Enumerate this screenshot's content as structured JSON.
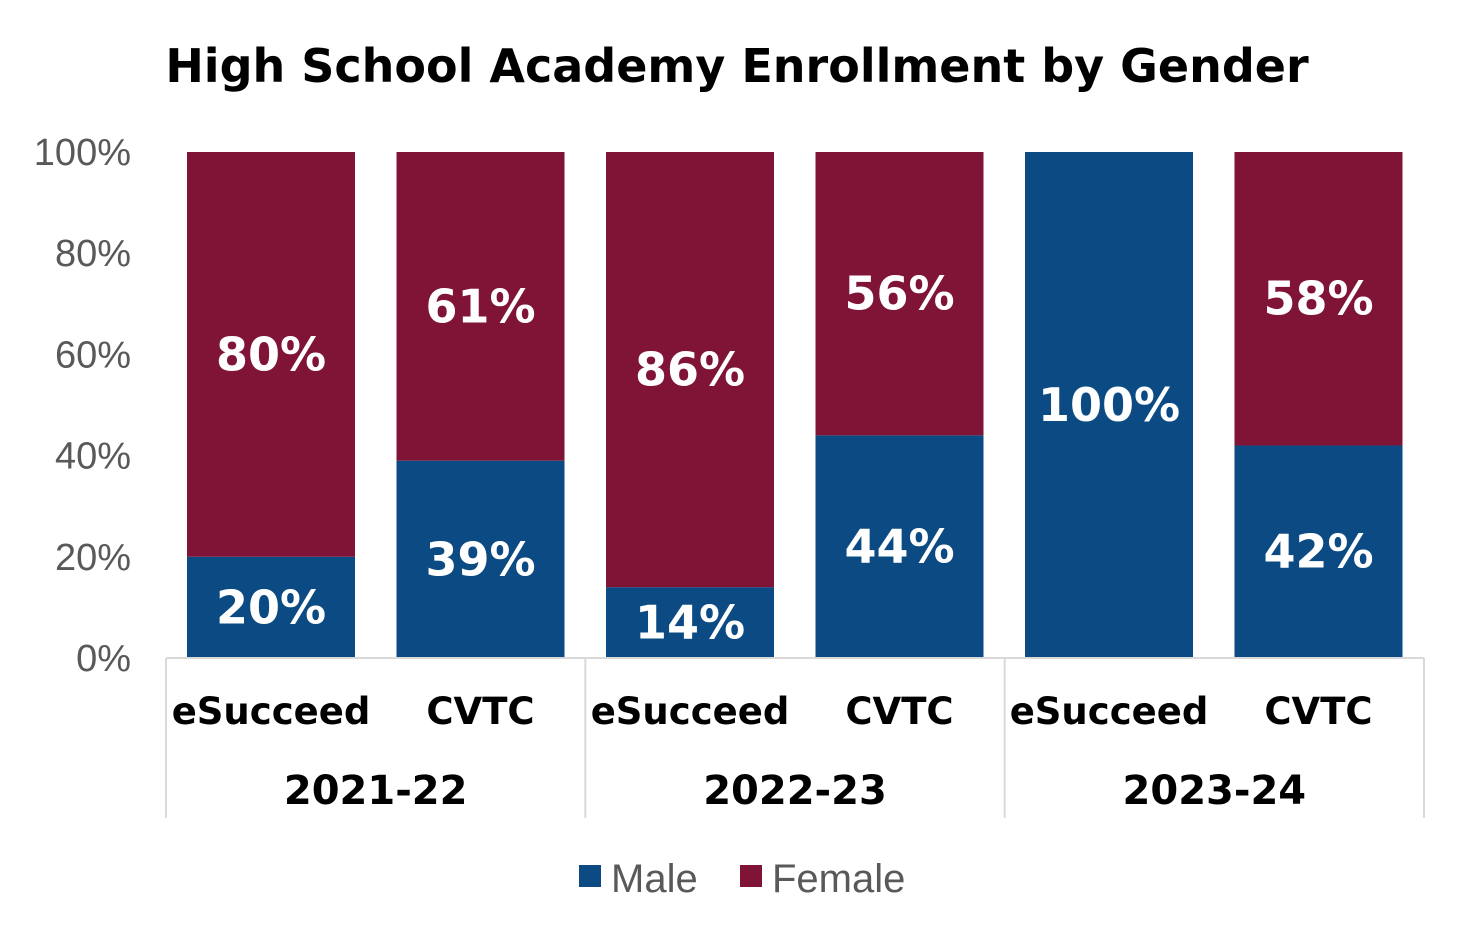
{
  "chart_data": {
    "type": "bar",
    "stacked": true,
    "title": "High School Academy Enrollment by Gender",
    "y_ticks": [
      "0%",
      "20%",
      "40%",
      "60%",
      "80%",
      "100%"
    ],
    "ylim": [
      0,
      100
    ],
    "groups": [
      {
        "label": "2021-22",
        "categories": [
          "eSucceed",
          "CVTC"
        ]
      },
      {
        "label": "2022-23",
        "categories": [
          "eSucceed",
          "CVTC"
        ]
      },
      {
        "label": "2023-24",
        "categories": [
          "eSucceed",
          "CVTC"
        ]
      }
    ],
    "categories": [
      "eSucceed",
      "CVTC",
      "eSucceed",
      "CVTC",
      "eSucceed",
      "CVTC"
    ],
    "series": [
      {
        "name": "Male",
        "color": "#0b4a82",
        "values": [
          20,
          39,
          14,
          44,
          100,
          42
        ],
        "labels": [
          "20%",
          "39%",
          "14%",
          "44%",
          "100%",
          "42%"
        ]
      },
      {
        "name": "Female",
        "color": "#801436",
        "values": [
          80,
          61,
          86,
          56,
          0,
          58
        ],
        "labels": [
          "80%",
          "61%",
          "86%",
          "56%",
          "",
          "58%"
        ]
      }
    ],
    "legend": {
      "position": "bottom",
      "entries": [
        "Male",
        "Female"
      ]
    }
  }
}
